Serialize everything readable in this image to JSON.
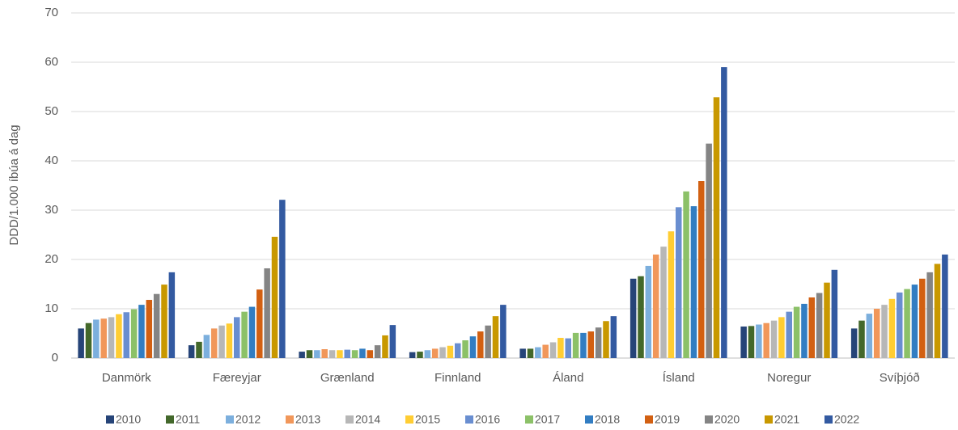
{
  "chart_data": {
    "type": "bar",
    "y_label": "DDD/1.000 íbúa á dag",
    "categories": [
      "Danmörk",
      "Færeyjar",
      "Grænland",
      "Finnland",
      "Áland",
      "Ísland",
      "Noregur",
      "Svíþjóð"
    ],
    "series": [
      {
        "name": "2010",
        "color": "#264478",
        "values": [
          6.0,
          2.6,
          1.3,
          1.2,
          1.9,
          16.1,
          6.4,
          6.0
        ]
      },
      {
        "name": "2011",
        "color": "#43682b",
        "values": [
          7.1,
          3.3,
          1.6,
          1.3,
          1.9,
          16.6,
          6.5,
          7.6
        ]
      },
      {
        "name": "2012",
        "color": "#7cafdd",
        "values": [
          7.8,
          4.7,
          1.6,
          1.6,
          2.2,
          18.7,
          6.8,
          9.0
        ]
      },
      {
        "name": "2013",
        "color": "#f1975a",
        "values": [
          8.0,
          6.0,
          1.8,
          1.9,
          2.7,
          21.0,
          7.1,
          10.0
        ]
      },
      {
        "name": "2014",
        "color": "#b7b7b7",
        "values": [
          8.3,
          6.6,
          1.6,
          2.2,
          3.2,
          22.6,
          7.6,
          10.8
        ]
      },
      {
        "name": "2015",
        "color": "#ffcd33",
        "values": [
          8.9,
          7.0,
          1.6,
          2.5,
          4.1,
          25.7,
          8.3,
          12.0
        ]
      },
      {
        "name": "2016",
        "color": "#698ed0",
        "values": [
          9.3,
          8.3,
          1.7,
          3.0,
          4.0,
          30.6,
          9.4,
          13.3
        ]
      },
      {
        "name": "2017",
        "color": "#8cc168",
        "values": [
          9.9,
          9.4,
          1.6,
          3.6,
          5.1,
          33.8,
          10.4,
          14.0
        ]
      },
      {
        "name": "2018",
        "color": "#327dc2",
        "values": [
          10.8,
          10.4,
          1.9,
          4.4,
          5.1,
          30.8,
          11.0,
          14.9
        ]
      },
      {
        "name": "2019",
        "color": "#d26012",
        "values": [
          11.8,
          13.9,
          1.6,
          5.4,
          5.4,
          35.9,
          12.3,
          16.1
        ]
      },
      {
        "name": "2020",
        "color": "#848484",
        "values": [
          13.0,
          18.2,
          2.6,
          6.6,
          6.2,
          43.5,
          13.2,
          17.4
        ]
      },
      {
        "name": "2021",
        "color": "#c89800",
        "values": [
          14.9,
          24.6,
          4.6,
          8.5,
          7.5,
          52.9,
          15.3,
          19.1
        ]
      },
      {
        "name": "2022",
        "color": "#335aa1",
        "values": [
          17.4,
          32.1,
          6.7,
          10.8,
          8.5,
          59.0,
          17.9,
          21.0
        ]
      }
    ],
    "ylim": [
      0,
      70
    ],
    "yticks": [
      0,
      10,
      20,
      30,
      40,
      50,
      60,
      70
    ],
    "grid": true,
    "legend": "bottom"
  }
}
